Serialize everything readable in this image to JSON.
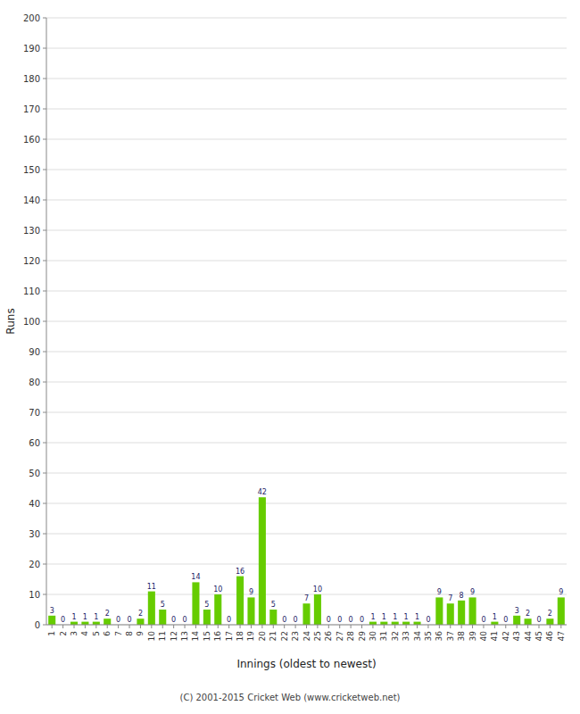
{
  "chart_data": {
    "type": "bar",
    "categories": [
      "1",
      "2",
      "3",
      "4",
      "5",
      "6",
      "7",
      "8",
      "9",
      "10",
      "11",
      "12",
      "13",
      "14",
      "15",
      "16",
      "17",
      "18",
      "19",
      "20",
      "21",
      "22",
      "23",
      "24",
      "25",
      "26",
      "27",
      "28",
      "29",
      "30",
      "31",
      "32",
      "33",
      "34",
      "35",
      "36",
      "37",
      "38",
      "39",
      "40",
      "41",
      "42",
      "43",
      "44",
      "45",
      "46",
      "47"
    ],
    "values": [
      3,
      0,
      1,
      1,
      1,
      2,
      0,
      0,
      2,
      11,
      5,
      0,
      0,
      14,
      5,
      10,
      0,
      16,
      9,
      42,
      5,
      0,
      0,
      7,
      10,
      0,
      0,
      0,
      0,
      1,
      1,
      1,
      1,
      1,
      0,
      9,
      7,
      8,
      9,
      0,
      1,
      0,
      3,
      2,
      0,
      2,
      9
    ],
    "color": "#66cc00",
    "x_label": "Innings (oldest to newest)",
    "y_label": "Runs",
    "ylim": [
      0,
      200
    ],
    "yticks": [
      0,
      10,
      20,
      30,
      40,
      50,
      60,
      70,
      80,
      90,
      100,
      110,
      120,
      130,
      140,
      150,
      160,
      170,
      180,
      190,
      200
    ],
    "grid": true,
    "data_labels": true,
    "annotations": [
      "(C) 2001-2015 Cricket Web (www.cricketweb.net)"
    ]
  }
}
